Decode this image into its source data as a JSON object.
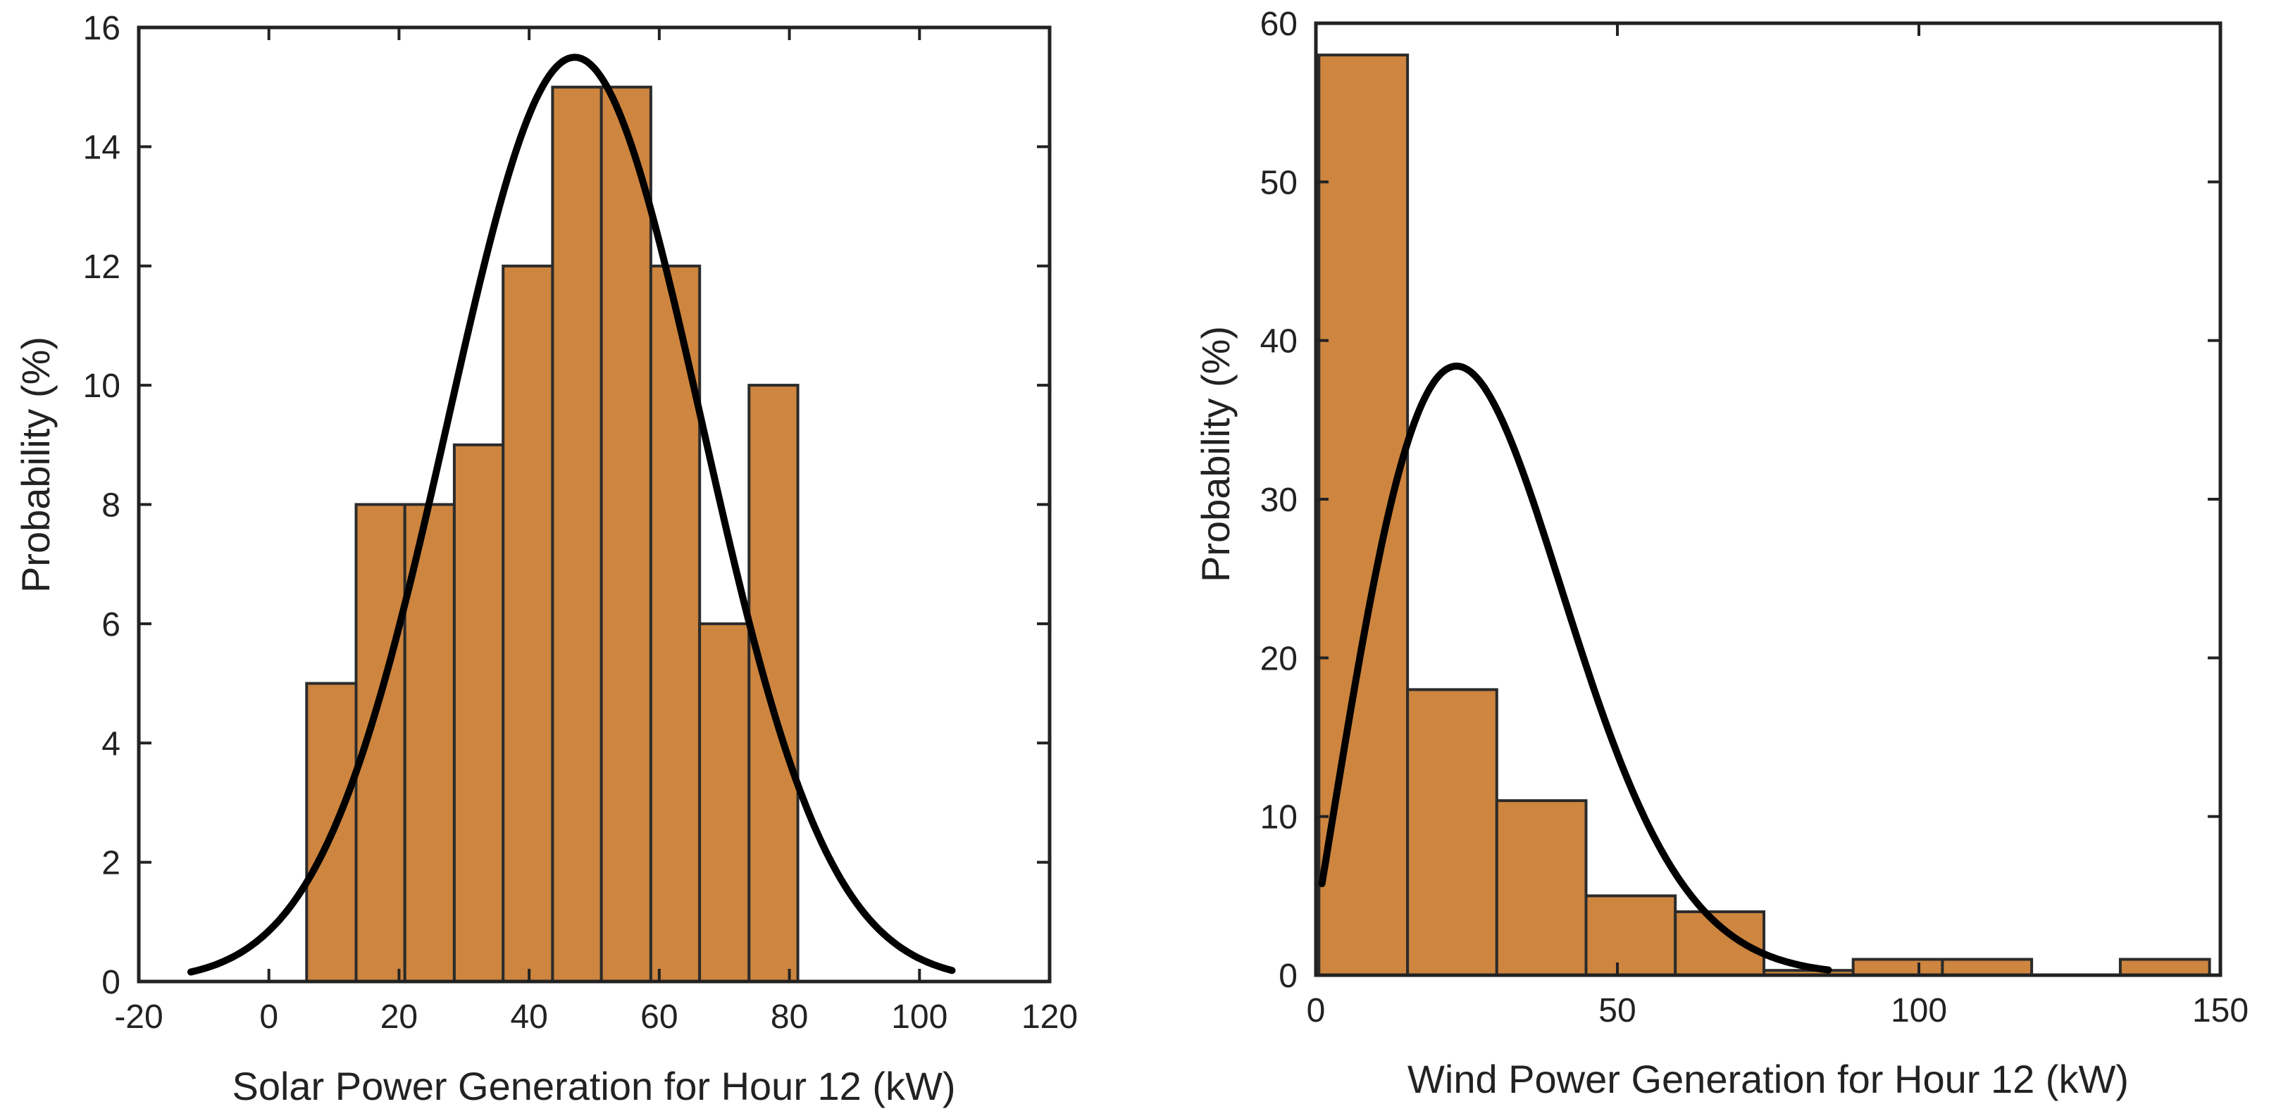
{
  "colors": {
    "bar_fill": "#CD853F",
    "bar_edge": "#2b2b2b",
    "curve": "#000000",
    "axes": "#222222",
    "background": "#ffffff"
  },
  "chart_data": [
    {
      "type": "bar",
      "subtype": "histogram-with-fitted-curve",
      "title": "",
      "xlabel": "Solar Power Generation for Hour 12 (kW)",
      "ylabel": "Probability (%)",
      "xlim": [
        -20,
        120
      ],
      "ylim": [
        0,
        16
      ],
      "xticks": [
        -20,
        0,
        20,
        40,
        60,
        80,
        100,
        120
      ],
      "yticks": [
        0,
        2,
        4,
        6,
        8,
        10,
        12,
        14,
        16
      ],
      "grid": false,
      "bins": [
        {
          "start": 5.8,
          "end": 13.4,
          "value": 5
        },
        {
          "start": 13.4,
          "end": 20.9,
          "value": 8
        },
        {
          "start": 20.9,
          "end": 28.5,
          "value": 8
        },
        {
          "start": 28.5,
          "end": 36.0,
          "value": 9
        },
        {
          "start": 36.0,
          "end": 43.6,
          "value": 12
        },
        {
          "start": 43.6,
          "end": 51.1,
          "value": 15
        },
        {
          "start": 51.1,
          "end": 58.7,
          "value": 15
        },
        {
          "start": 58.7,
          "end": 66.2,
          "value": 12
        },
        {
          "start": 66.2,
          "end": 73.8,
          "value": 6
        },
        {
          "start": 73.8,
          "end": 81.3,
          "value": 10
        }
      ],
      "curve": {
        "type": "normal",
        "mean": 47,
        "sd": 19.5,
        "peak": 15.5,
        "xrange": [
          -12,
          105
        ]
      }
    },
    {
      "type": "bar",
      "subtype": "histogram-with-fitted-curve",
      "title": "",
      "xlabel": "Wind Power Generation for Hour 12 (kW)",
      "ylabel": "Probability (%)",
      "xlim": [
        0,
        150
      ],
      "ylim": [
        0,
        60
      ],
      "xticks": [
        0,
        50,
        100,
        150
      ],
      "yticks": [
        0,
        10,
        20,
        30,
        40,
        50,
        60
      ],
      "grid": false,
      "bins": [
        {
          "start": 0.5,
          "end": 15.2,
          "value": 58
        },
        {
          "start": 15.2,
          "end": 30.0,
          "value": 18
        },
        {
          "start": 30.0,
          "end": 44.8,
          "value": 11
        },
        {
          "start": 44.8,
          "end": 59.6,
          "value": 5
        },
        {
          "start": 59.6,
          "end": 74.3,
          "value": 4
        },
        {
          "start": 74.3,
          "end": 89.1,
          "value": 0.3
        },
        {
          "start": 89.1,
          "end": 103.9,
          "value": 1
        },
        {
          "start": 103.9,
          "end": 118.7,
          "value": 1
        },
        {
          "start": 118.7,
          "end": 133.4,
          "value": 0
        },
        {
          "start": 133.4,
          "end": 148.2,
          "value": 1
        }
      ],
      "curve": {
        "type": "rayleigh-like",
        "mode": 23.5,
        "peak": 38.2,
        "start_value": 3.5,
        "xrange": [
          1,
          85
        ]
      }
    }
  ]
}
